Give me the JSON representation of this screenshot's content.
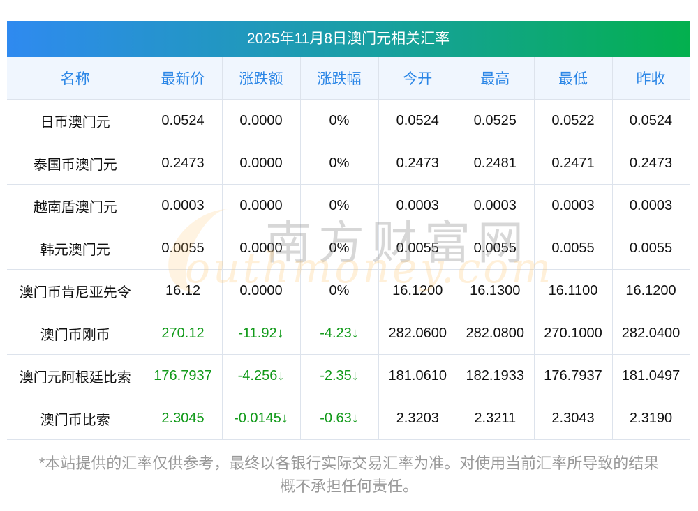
{
  "title": "2025年11月8日澳门元相关汇率",
  "columns": [
    "名称",
    "最新价",
    "涨跌额",
    "涨跌幅",
    "今开",
    "最高",
    "最低",
    "昨收"
  ],
  "rows": [
    {
      "name": "日币澳门元",
      "latest": "0.0524",
      "change": "0.0000",
      "pct": "0%",
      "open": "0.0524",
      "high": "0.0525",
      "low": "0.0522",
      "prev": "0.0524",
      "down": false
    },
    {
      "name": "泰国币澳门元",
      "latest": "0.2473",
      "change": "0.0000",
      "pct": "0%",
      "open": "0.2473",
      "high": "0.2481",
      "low": "0.2471",
      "prev": "0.2473",
      "down": false
    },
    {
      "name": "越南盾澳门元",
      "latest": "0.0003",
      "change": "0.0000",
      "pct": "0%",
      "open": "0.0003",
      "high": "0.0003",
      "low": "0.0003",
      "prev": "0.0003",
      "down": false
    },
    {
      "name": "韩元澳门元",
      "latest": "0.0055",
      "change": "0.0000",
      "pct": "0%",
      "open": "0.0055",
      "high": "0.0055",
      "low": "0.0055",
      "prev": "0.0055",
      "down": false
    },
    {
      "name": "澳门币肯尼亚先令",
      "latest": "16.12",
      "change": "0.0000",
      "pct": "0%",
      "open": "16.1200",
      "high": "16.1300",
      "low": "16.1100",
      "prev": "16.1200",
      "down": false
    },
    {
      "name": "澳门币刚币",
      "latest": "270.12",
      "change": "-11.92↓",
      "pct": "-4.23↓",
      "open": "282.0600",
      "high": "282.0800",
      "low": "270.1000",
      "prev": "282.0400",
      "down": true
    },
    {
      "name": "澳门元阿根廷比索",
      "latest": "176.7937",
      "change": "-4.256↓",
      "pct": "-2.35↓",
      "open": "181.0610",
      "high": "182.1933",
      "low": "176.7937",
      "prev": "181.0497",
      "down": true
    },
    {
      "name": "澳门币比索",
      "latest": "2.3045",
      "change": "-0.0145↓",
      "pct": "-0.63↓",
      "open": "2.3203",
      "high": "2.3211",
      "low": "2.3043",
      "prev": "2.3190",
      "down": true
    }
  ],
  "footer": [
    "*本站提供的汇率仅供参考，最终以各银行实际交易汇率为准。对使用当前汇率所导致的结果",
    "概不承担任何责任。"
  ],
  "watermark": {
    "cn": "南方财富网",
    "en": "outhmoney.com"
  },
  "colors": {
    "header_text": "#2b86e6",
    "down": "#129a1a",
    "gradient_start": "#2f8af0",
    "gradient_end": "#03b04e"
  }
}
